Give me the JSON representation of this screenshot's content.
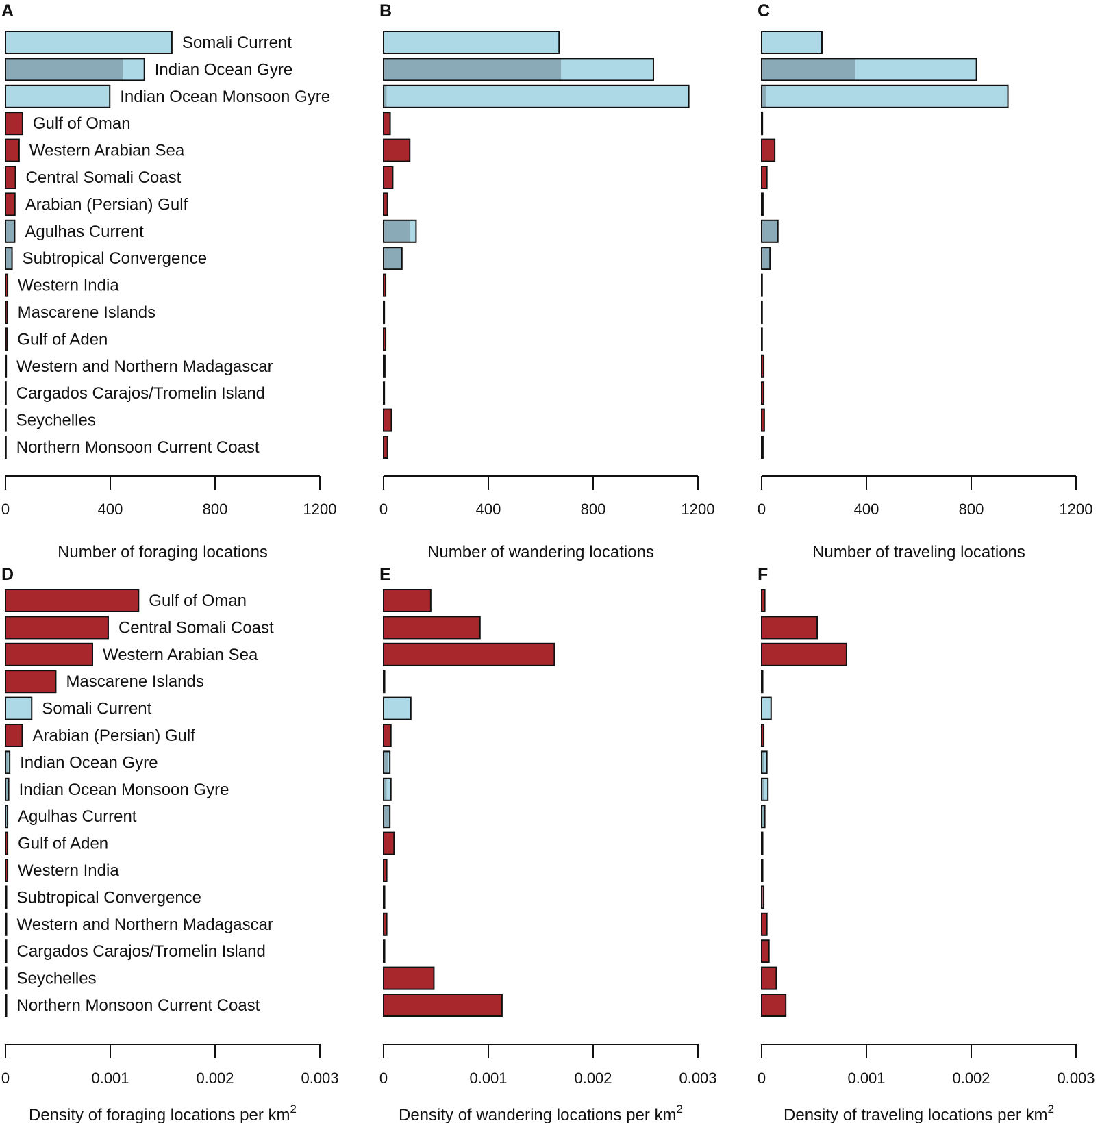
{
  "colors": {
    "ocean": "#add8e6",
    "ocean_dark": "#8aaab8",
    "coastal": "#a8272c",
    "outline": "#111111"
  },
  "chart_data": [
    {
      "panel": "A",
      "type": "bar",
      "orientation": "horizontal",
      "stacked": true,
      "xlabel": "Number of foraging locations",
      "xlim": [
        0,
        1200
      ],
      "xticks": [
        "0",
        "400",
        "800",
        "1200"
      ],
      "categories": [
        "Somali Current",
        "Indian Ocean Gyre",
        "Indian Ocean Monsoon Gyre",
        "Gulf of Oman",
        "Western Arabian Sea",
        "Central Somali Coast",
        "Arabian (Persian) Gulf",
        "Agulhas Current",
        "Subtropical Convergence",
        "Western India",
        "Mascarene Islands",
        "Gulf of Aden",
        "Western and Northern Madagascar",
        "Cargados Carajos/Tromelin Island",
        "Seychelles",
        "Northern Monsoon Current Coast"
      ],
      "series": [
        {
          "name": "ocean (dark share)",
          "color": "ocean_dark",
          "values": [
            0,
            448,
            0,
            0,
            0,
            0,
            0,
            35,
            25,
            0,
            0,
            0,
            0,
            0,
            0,
            0
          ]
        },
        {
          "name": "ocean",
          "color": "ocean",
          "values": [
            635,
            82,
            398,
            0,
            0,
            0,
            0,
            0,
            0,
            0,
            0,
            0,
            0,
            0,
            0,
            0
          ]
        },
        {
          "name": "coastal",
          "color": "coastal",
          "values": [
            0,
            0,
            0,
            65,
            52,
            38,
            36,
            0,
            0,
            8,
            7,
            6,
            3,
            2,
            2,
            2
          ]
        }
      ]
    },
    {
      "panel": "B",
      "type": "bar",
      "orientation": "horizontal",
      "stacked": true,
      "xlabel": "Number of wandering locations",
      "xlim": [
        0,
        1200
      ],
      "xticks": [
        "0",
        "400",
        "800",
        "1200"
      ],
      "series": [
        {
          "name": "ocean (dark share)",
          "color": "ocean_dark",
          "values": [
            0,
            678,
            12,
            0,
            0,
            0,
            0,
            102,
            70,
            0,
            0,
            0,
            0,
            0,
            0,
            0
          ]
        },
        {
          "name": "ocean",
          "color": "ocean",
          "values": [
            670,
            352,
            1153,
            0,
            0,
            0,
            0,
            22,
            0,
            0,
            0,
            0,
            0,
            0,
            0,
            0
          ]
        },
        {
          "name": "coastal",
          "color": "coastal",
          "values": [
            0,
            0,
            0,
            25,
            100,
            35,
            15,
            0,
            0,
            8,
            3,
            8,
            5,
            3,
            30,
            15
          ]
        }
      ]
    },
    {
      "panel": "C",
      "type": "bar",
      "orientation": "horizontal",
      "stacked": true,
      "xlabel": "Number of traveling locations",
      "xlim": [
        0,
        1200
      ],
      "xticks": [
        "0",
        "400",
        "800",
        "1200"
      ],
      "series": [
        {
          "name": "ocean (dark share)",
          "color": "ocean_dark",
          "values": [
            0,
            358,
            18,
            0,
            0,
            0,
            0,
            62,
            32,
            0,
            0,
            0,
            0,
            0,
            0,
            0
          ]
        },
        {
          "name": "ocean",
          "color": "ocean",
          "values": [
            230,
            462,
            922,
            0,
            0,
            0,
            0,
            0,
            0,
            0,
            0,
            0,
            0,
            0,
            0,
            0
          ]
        },
        {
          "name": "coastal",
          "color": "coastal",
          "values": [
            0,
            0,
            0,
            3,
            50,
            20,
            5,
            0,
            0,
            2,
            2,
            2,
            8,
            8,
            10,
            5
          ]
        }
      ]
    },
    {
      "panel": "D",
      "type": "bar",
      "orientation": "horizontal",
      "stacked": true,
      "xlabel": "Density of foraging locations per km",
      "xlabel_superscript": "2",
      "xlim": [
        0,
        0.003
      ],
      "xticks": [
        "0",
        "0.001",
        "0.002",
        "0.003"
      ],
      "categories": [
        "Gulf of Oman",
        "Central Somali Coast",
        "Western Arabian Sea",
        "Mascarene Islands",
        "Somali Current",
        "Arabian (Persian) Gulf",
        "Indian Ocean Gyre",
        "Indian Ocean Monsoon Gyre",
        "Agulhas Current",
        "Gulf of Aden",
        "Western India",
        "Subtropical Convergence",
        "Western and Northern Madagascar",
        "Cargados Carajos/Tromelin Island",
        "Seychelles",
        "Northern Monsoon Current Coast"
      ],
      "series": [
        {
          "name": "ocean (dark share)",
          "color": "ocean_dark",
          "values": [
            0,
            0,
            0,
            0,
            0,
            0,
            3e-05,
            2e-05,
            2e-05,
            0,
            0,
            1e-05,
            0,
            0,
            0,
            0
          ]
        },
        {
          "name": "ocean",
          "color": "ocean",
          "values": [
            0,
            0,
            0,
            0,
            0.00025,
            0,
            1e-05,
            1e-05,
            0,
            0,
            0,
            0,
            0,
            0,
            0,
            0
          ]
        },
        {
          "name": "coastal",
          "color": "coastal",
          "values": [
            0.00127,
            0.00098,
            0.00083,
            0.00048,
            0,
            0.00016,
            0,
            0,
            0,
            2e-05,
            2e-05,
            0,
            1e-05,
            1e-05,
            1e-05,
            1e-05
          ]
        }
      ]
    },
    {
      "panel": "E",
      "type": "bar",
      "orientation": "horizontal",
      "stacked": true,
      "xlabel": "Density of wandering locations per km",
      "xlabel_superscript": "2",
      "xlim": [
        0,
        0.003
      ],
      "xticks": [
        "0",
        "0.001",
        "0.002",
        "0.003"
      ],
      "series": [
        {
          "name": "ocean (dark share)",
          "color": "ocean_dark",
          "values": [
            0,
            0,
            0,
            0,
            0,
            0,
            4e-05,
            3e-05,
            6e-05,
            0,
            0,
            1e-05,
            0,
            0,
            0,
            0
          ]
        },
        {
          "name": "ocean",
          "color": "ocean",
          "values": [
            0,
            0,
            0,
            0,
            0.00026,
            0,
            2e-05,
            4e-05,
            0,
            0,
            0,
            0,
            0,
            0,
            0,
            0
          ]
        },
        {
          "name": "coastal",
          "color": "coastal",
          "values": [
            0.00045,
            0.00092,
            0.00163,
            1e-05,
            0,
            7e-05,
            0,
            0,
            0,
            0.0001,
            3e-05,
            0,
            3e-05,
            1e-05,
            0.00048,
            0.00113
          ]
        }
      ]
    },
    {
      "panel": "F",
      "type": "bar",
      "orientation": "horizontal",
      "stacked": true,
      "xlabel": "Density of traveling locations per km",
      "xlabel_superscript": "2",
      "xlim": [
        0,
        0.003
      ],
      "xticks": [
        "0",
        "0.001",
        "0.002",
        "0.003"
      ],
      "series": [
        {
          "name": "ocean (dark share)",
          "color": "ocean_dark",
          "values": [
            0,
            0,
            0,
            0,
            0,
            0,
            2e-05,
            2e-05,
            3e-05,
            0,
            0,
            1e-05,
            0,
            0,
            0,
            0
          ]
        },
        {
          "name": "ocean",
          "color": "ocean",
          "values": [
            0,
            0,
            0,
            0,
            9e-05,
            0,
            3e-05,
            4e-05,
            0,
            0,
            0,
            0,
            0,
            0,
            0,
            0
          ]
        },
        {
          "name": "coastal",
          "color": "coastal",
          "values": [
            3e-05,
            0.00053,
            0.00081,
            1e-05,
            0,
            2e-05,
            0,
            0,
            0,
            1e-05,
            1e-05,
            1e-05,
            5e-05,
            7e-05,
            0.00014,
            0.00023
          ]
        }
      ]
    }
  ]
}
